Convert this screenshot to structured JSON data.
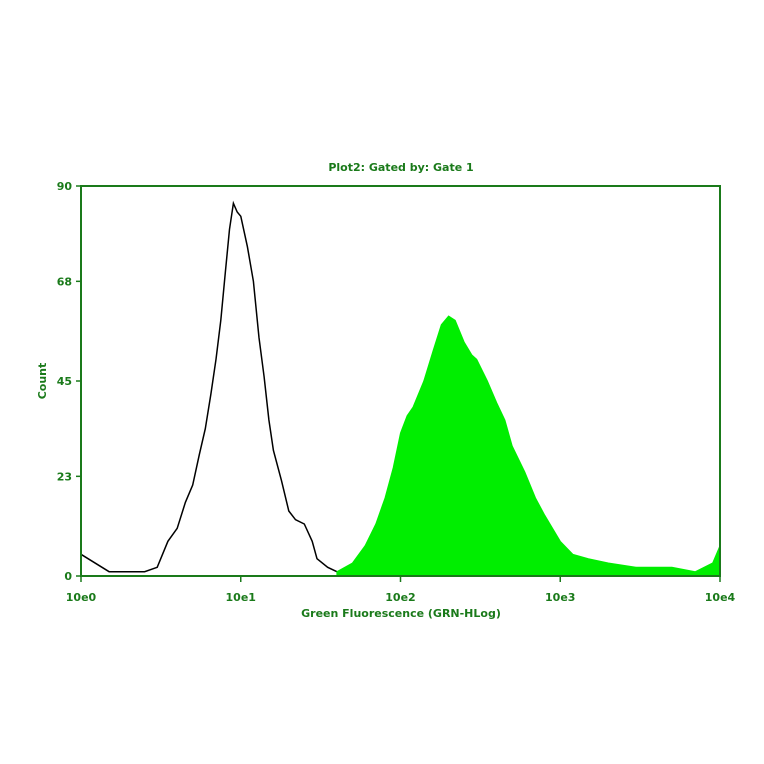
{
  "chart_data": {
    "type": "area",
    "title": "Plot2:  Gated by: Gate 1",
    "xlabel": "Green Fluorescence (GRN-HLog)",
    "ylabel": "Count",
    "x_scale": "log",
    "xlim": [
      1,
      10000
    ],
    "ylim": [
      0,
      90
    ],
    "x_ticks": [
      {
        "value": 1,
        "label": "10e0"
      },
      {
        "value": 10,
        "label": "10e1"
      },
      {
        "value": 100,
        "label": "10e2"
      },
      {
        "value": 1000,
        "label": "10e3"
      },
      {
        "value": 10000,
        "label": "10e4"
      }
    ],
    "y_ticks": [
      {
        "value": 0,
        "label": "0"
      },
      {
        "value": 23,
        "label": "23"
      },
      {
        "value": 45,
        "label": "45"
      },
      {
        "value": 68,
        "label": "68"
      },
      {
        "value": 90,
        "label": "90"
      }
    ],
    "grid": false,
    "colors": {
      "axis": "#1a7a1a",
      "text": "#1a7a1a",
      "outline_series": "#000000",
      "filled_series": "#00ee00"
    },
    "series": [
      {
        "style": "outline",
        "color": "#000000",
        "x": [
          1,
          1.5,
          2,
          2.5,
          3,
          3.5,
          4,
          4.5,
          5,
          5.5,
          6,
          6.5,
          7,
          7.5,
          8,
          8.5,
          9,
          9.5,
          10,
          11,
          12,
          13,
          14,
          15,
          16,
          18,
          20,
          22,
          25,
          28,
          30,
          35,
          40,
          45
        ],
        "values": [
          5,
          1,
          1,
          1,
          2,
          8,
          11,
          17,
          21,
          28,
          34,
          42,
          50,
          59,
          70,
          80,
          86,
          84,
          83,
          76,
          68,
          55,
          46,
          36,
          29,
          22,
          15,
          13,
          12,
          8,
          4,
          2,
          1,
          0
        ]
      },
      {
        "style": "filled",
        "color": "#00ee00",
        "x": [
          40,
          50,
          60,
          70,
          80,
          90,
          100,
          110,
          120,
          140,
          160,
          180,
          200,
          220,
          250,
          280,
          300,
          350,
          400,
          450,
          500,
          600,
          700,
          800,
          1000,
          1200,
          1500,
          2000,
          3000,
          5000,
          7000,
          9000,
          10000
        ],
        "values": [
          1,
          3,
          7,
          12,
          18,
          25,
          33,
          37,
          39,
          45,
          52,
          58,
          60,
          59,
          54,
          51,
          50,
          45,
          40,
          36,
          30,
          24,
          18,
          14,
          8,
          5,
          4,
          3,
          2,
          2,
          1,
          3,
          7
        ]
      }
    ]
  }
}
